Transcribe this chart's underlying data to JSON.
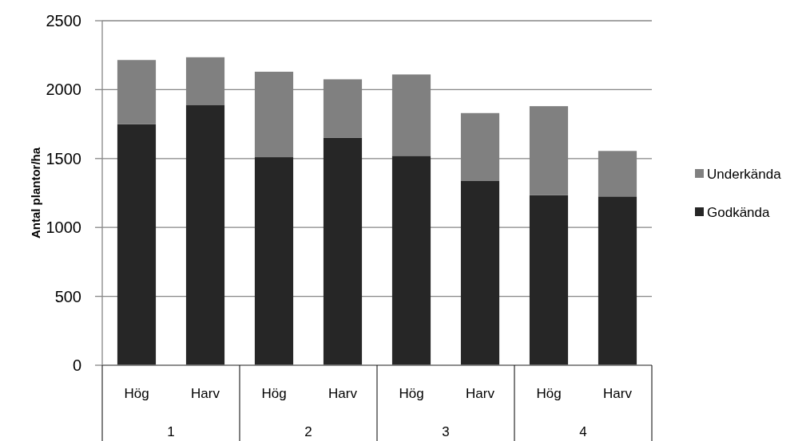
{
  "chart_data": {
    "type": "bar",
    "stacked": true,
    "ylabel": "Antal plantor/ha",
    "categories": [
      "Hög",
      "Harv",
      "Hög",
      "Harv",
      "Hög",
      "Harv",
      "Hög",
      "Harv"
    ],
    "series": [
      {
        "name": "Godkända",
        "color": "#262626",
        "values": [
          1750,
          1890,
          1510,
          1650,
          1520,
          1340,
          1235,
          1225
        ]
      },
      {
        "name": "Underkända",
        "color": "#808080",
        "values": [
          465,
          345,
          620,
          425,
          590,
          490,
          645,
          330
        ]
      }
    ],
    "annotations": [
      "1",
      "2",
      "3",
      "4"
    ],
    "ylim": [
      0,
      2500
    ],
    "yticks": [
      0,
      500,
      1000,
      1500,
      2000,
      2500
    ],
    "grid": "y",
    "legend": "right"
  }
}
